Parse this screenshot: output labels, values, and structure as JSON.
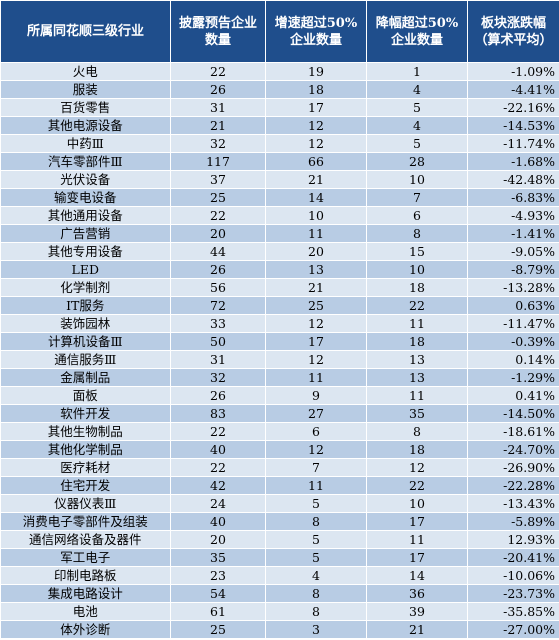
{
  "table": {
    "headers": [
      "所属同花顺三级行业",
      "披露预告企业数量",
      "增速超过50%企业数量",
      "降幅超过50%企业数量",
      "板块涨跌幅（算术平均）"
    ],
    "rows": [
      [
        "火电",
        "22",
        "19",
        "1",
        "-1.09%"
      ],
      [
        "服装",
        "26",
        "18",
        "4",
        "-4.41%"
      ],
      [
        "百货零售",
        "31",
        "17",
        "5",
        "-22.16%"
      ],
      [
        "其他电源设备",
        "21",
        "12",
        "4",
        "-14.53%"
      ],
      [
        "中药Ⅲ",
        "32",
        "12",
        "5",
        "-11.74%"
      ],
      [
        "汽车零部件Ⅲ",
        "117",
        "66",
        "28",
        "-1.68%"
      ],
      [
        "光伏设备",
        "37",
        "21",
        "10",
        "-42.48%"
      ],
      [
        "输变电设备",
        "25",
        "14",
        "7",
        "-6.83%"
      ],
      [
        "其他通用设备",
        "22",
        "10",
        "6",
        "-4.93%"
      ],
      [
        "广告营销",
        "20",
        "11",
        "8",
        "-1.41%"
      ],
      [
        "其他专用设备",
        "44",
        "20",
        "15",
        "-9.05%"
      ],
      [
        "LED",
        "26",
        "13",
        "10",
        "-8.79%"
      ],
      [
        "化学制剂",
        "56",
        "21",
        "18",
        "-13.28%"
      ],
      [
        "IT服务",
        "72",
        "25",
        "22",
        "0.63%"
      ],
      [
        "装饰园林",
        "33",
        "12",
        "11",
        "-11.47%"
      ],
      [
        "计算机设备Ⅲ",
        "50",
        "17",
        "18",
        "-0.39%"
      ],
      [
        "通信服务Ⅲ",
        "31",
        "12",
        "13",
        "0.14%"
      ],
      [
        "金属制品",
        "32",
        "11",
        "13",
        "-1.29%"
      ],
      [
        "面板",
        "26",
        "9",
        "11",
        "0.41%"
      ],
      [
        "软件开发",
        "83",
        "27",
        "35",
        "-14.50%"
      ],
      [
        "其他生物制品",
        "22",
        "6",
        "8",
        "-18.61%"
      ],
      [
        "其他化学制品",
        "40",
        "12",
        "18",
        "-24.70%"
      ],
      [
        "医疗耗材",
        "22",
        "7",
        "12",
        "-26.90%"
      ],
      [
        "住宅开发",
        "42",
        "11",
        "22",
        "-22.28%"
      ],
      [
        "仪器仪表Ⅲ",
        "24",
        "5",
        "10",
        "-13.43%"
      ],
      [
        "消费电子零部件及组装",
        "40",
        "8",
        "17",
        "-5.89%"
      ],
      [
        "通信网络设备及器件",
        "20",
        "5",
        "11",
        "12.93%"
      ],
      [
        "军工电子",
        "35",
        "5",
        "17",
        "-20.41%"
      ],
      [
        "印制电路板",
        "23",
        "4",
        "14",
        "-10.06%"
      ],
      [
        "集成电路设计",
        "54",
        "8",
        "36",
        "-23.73%"
      ],
      [
        "电池",
        "61",
        "8",
        "39",
        "-35.85%"
      ],
      [
        "体外诊断",
        "25",
        "3",
        "21",
        "-27.00%"
      ]
    ]
  }
}
